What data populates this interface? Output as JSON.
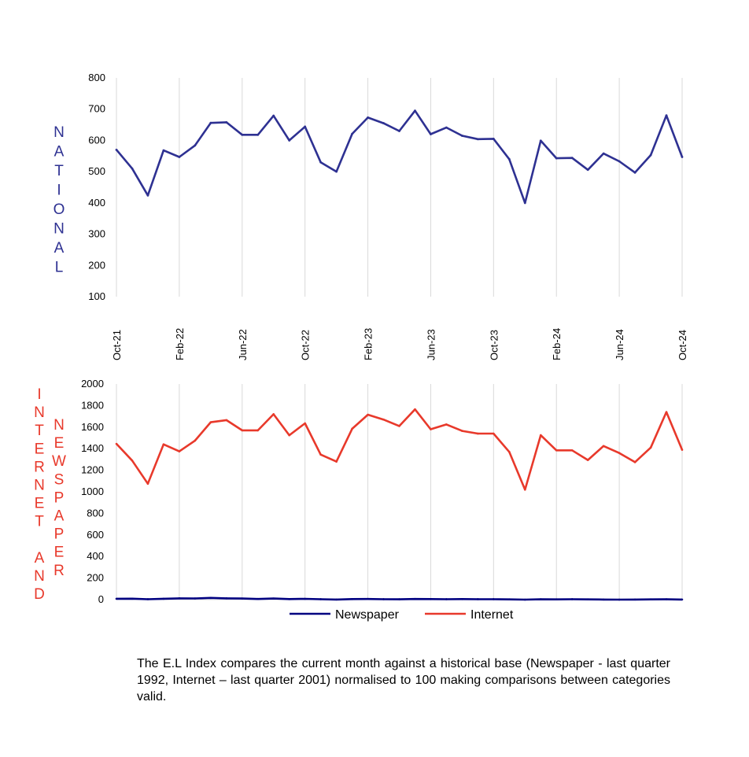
{
  "chart_data": [
    {
      "type": "line",
      "ylabel": "NATIONAL",
      "ylim": [
        100,
        800
      ],
      "yticks": [
        "100",
        "200",
        "300",
        "400",
        "500",
        "600",
        "700",
        "800"
      ],
      "xtick_labels": [
        "Oct-21",
        "Feb-22",
        "Jun-22",
        "Oct-22",
        "Feb-23",
        "Jun-23",
        "Oct-23",
        "Feb-24",
        "Jun-24",
        "Oct-24"
      ],
      "grid": "vertical",
      "series": [
        {
          "color": "#2e3192",
          "values": [
            570,
            510,
            424,
            568,
            547,
            584,
            656,
            658,
            618,
            618,
            679,
            600,
            644,
            530,
            500,
            621,
            673,
            655,
            630,
            695,
            620,
            641,
            615,
            604,
            605,
            540,
            400,
            599,
            543,
            544,
            506,
            558,
            533,
            497,
            553,
            680,
            547
          ]
        }
      ]
    },
    {
      "type": "line",
      "ylabel_lines": [
        "INTERNET AND",
        "NEWSPAPER"
      ],
      "ylim": [
        0,
        2000
      ],
      "yticks": [
        "0",
        "200",
        "400",
        "600",
        "800",
        "1000",
        "1200",
        "1400",
        "1600",
        "1800",
        "2000"
      ],
      "grid": "vertical",
      "legend_position": "bottom",
      "series": [
        {
          "name": "Newspaper",
          "color": "#000080",
          "values": [
            8,
            9,
            4,
            8,
            12,
            11,
            16,
            12,
            10,
            6,
            10,
            5,
            7,
            4,
            1,
            5,
            6,
            4,
            3,
            6,
            5,
            4,
            5,
            4,
            4,
            2,
            0,
            3,
            2,
            4,
            2,
            1,
            0,
            1,
            2,
            3,
            1
          ]
        },
        {
          "name": "Internet",
          "color": "#e8392b",
          "values": [
            1445,
            1290,
            1075,
            1440,
            1375,
            1475,
            1645,
            1665,
            1570,
            1570,
            1720,
            1525,
            1635,
            1345,
            1280,
            1585,
            1715,
            1670,
            1610,
            1765,
            1580,
            1625,
            1565,
            1540,
            1540,
            1370,
            1020,
            1525,
            1385,
            1385,
            1295,
            1425,
            1360,
            1275,
            1410,
            1740,
            1390
          ]
        }
      ]
    }
  ],
  "caption": "The E.L Index compares the current month against a historical base (Newspaper - last quarter 1992, Internet – last quarter 2001) normalised to 100 making comparisons between categories valid."
}
